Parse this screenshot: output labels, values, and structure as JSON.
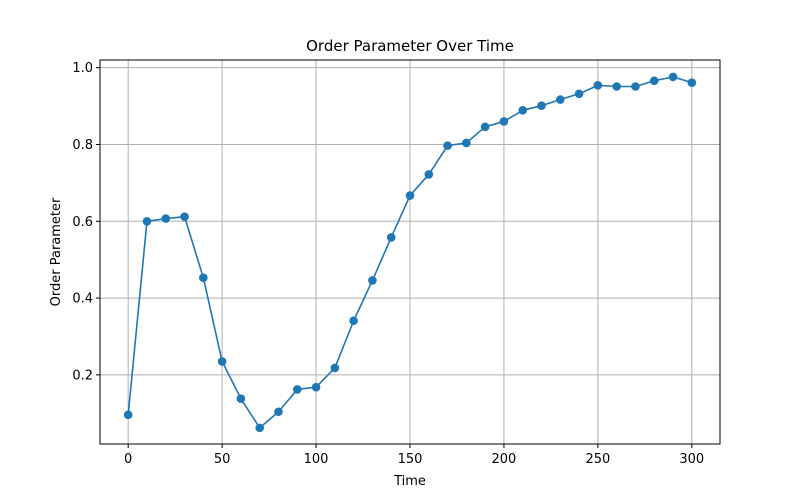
{
  "chart_data": {
    "type": "line",
    "title": "Order Parameter Over Time",
    "xlabel": "Time",
    "ylabel": "Order Parameter",
    "xlim": [
      -15,
      315
    ],
    "ylim": [
      0.02,
      1.02
    ],
    "grid": true,
    "x_ticks": [
      0,
      50,
      100,
      150,
      200,
      250,
      300
    ],
    "y_ticks": [
      0.2,
      0.4,
      0.6,
      0.8,
      1.0
    ],
    "x_tick_labels": [
      "0",
      "50",
      "100",
      "150",
      "200",
      "250",
      "300"
    ],
    "y_tick_labels": [
      "0.2",
      "0.4",
      "0.6",
      "0.8",
      "1.0"
    ],
    "series": [
      {
        "color": "#1f77b4",
        "marker": "circle",
        "x": [
          0,
          10,
          20,
          30,
          40,
          50,
          60,
          70,
          80,
          90,
          100,
          110,
          120,
          130,
          140,
          150,
          160,
          170,
          180,
          190,
          200,
          210,
          220,
          230,
          240,
          250,
          260,
          270,
          280,
          290,
          300
        ],
        "y": [
          0.096,
          0.6,
          0.607,
          0.612,
          0.453,
          0.235,
          0.138,
          0.062,
          0.104,
          0.162,
          0.168,
          0.218,
          0.341,
          0.446,
          0.558,
          0.667,
          0.722,
          0.797,
          0.804,
          0.846,
          0.86,
          0.889,
          0.901,
          0.917,
          0.932,
          0.954,
          0.951,
          0.951,
          0.966,
          0.976,
          0.961
        ]
      }
    ]
  }
}
